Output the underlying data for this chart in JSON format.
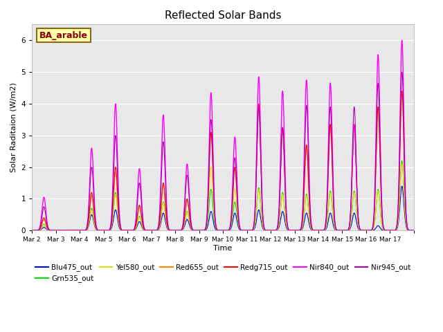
{
  "title": "Reflected Solar Bands",
  "xlabel": "Time",
  "ylabel": "Solar Raditaion (W/m2)",
  "annotation": "BA_arable",
  "ylim": [
    0,
    6.5
  ],
  "series_order": [
    "Blu475_out",
    "Grn535_out",
    "Yel580_out",
    "Red655_out",
    "Redg715_out",
    "Nir840_out",
    "Nir945_out"
  ],
  "series": {
    "Blu475_out": {
      "color": "#0000ff",
      "lw": 0.8
    },
    "Grn535_out": {
      "color": "#00dd00",
      "lw": 0.8
    },
    "Yel580_out": {
      "color": "#dddd00",
      "lw": 0.8
    },
    "Red655_out": {
      "color": "#ff8800",
      "lw": 0.8
    },
    "Redg715_out": {
      "color": "#ff0000",
      "lw": 0.8
    },
    "Nir840_out": {
      "color": "#ff00ff",
      "lw": 1.0
    },
    "Nir945_out": {
      "color": "#aa00aa",
      "lw": 0.8
    }
  },
  "xtick_labels": [
    "Mar 2",
    "Mar 3",
    "Mar 4",
    "Mar 5",
    "Mar 6",
    "Mar 7",
    "Mar 8",
    "Mar 9",
    "Mar 10",
    "Mar 11",
    "Mar 12",
    "Mar 13",
    "Mar 14",
    "Mar 15",
    "Mar 16",
    "Mar 17"
  ],
  "bg_color": "#e8e8e8",
  "fig_color": "#ffffff",
  "nir840_peaks": [
    1.05,
    0.0,
    2.6,
    4.0,
    1.95,
    3.65,
    2.1,
    4.35,
    2.95,
    4.85,
    4.4,
    4.75,
    4.65,
    3.35,
    5.55,
    6.0
  ],
  "nir945_peaks": [
    0.75,
    0.0,
    2.0,
    3.0,
    1.5,
    2.8,
    1.75,
    3.5,
    2.3,
    3.9,
    3.25,
    3.95,
    3.9,
    3.9,
    4.65,
    5.0
  ],
  "redg715_peaks": [
    0.4,
    0.0,
    1.2,
    2.0,
    0.8,
    1.5,
    1.0,
    3.1,
    2.0,
    4.0,
    3.25,
    2.7,
    3.35,
    3.35,
    3.9,
    4.4
  ],
  "red655_peaks": [
    0.35,
    0.0,
    1.1,
    1.85,
    0.75,
    1.45,
    0.95,
    3.05,
    1.95,
    3.95,
    3.2,
    2.65,
    3.3,
    3.3,
    3.85,
    4.35
  ],
  "grn535_peaks": [
    0.2,
    0.0,
    0.7,
    1.2,
    0.45,
    0.9,
    0.6,
    1.3,
    0.9,
    1.35,
    1.2,
    1.15,
    1.25,
    1.25,
    1.3,
    2.2
  ],
  "yel580_peaks": [
    0.18,
    0.0,
    0.65,
    1.15,
    0.42,
    0.88,
    0.58,
    2.0,
    1.3,
    1.3,
    1.15,
    1.1,
    1.2,
    1.2,
    1.25,
    2.1
  ],
  "blu475_peaks": [
    0.1,
    0.0,
    0.5,
    0.65,
    0.28,
    0.55,
    0.35,
    0.6,
    0.55,
    0.65,
    0.6,
    0.55,
    0.55,
    0.55,
    0.15,
    1.4
  ]
}
